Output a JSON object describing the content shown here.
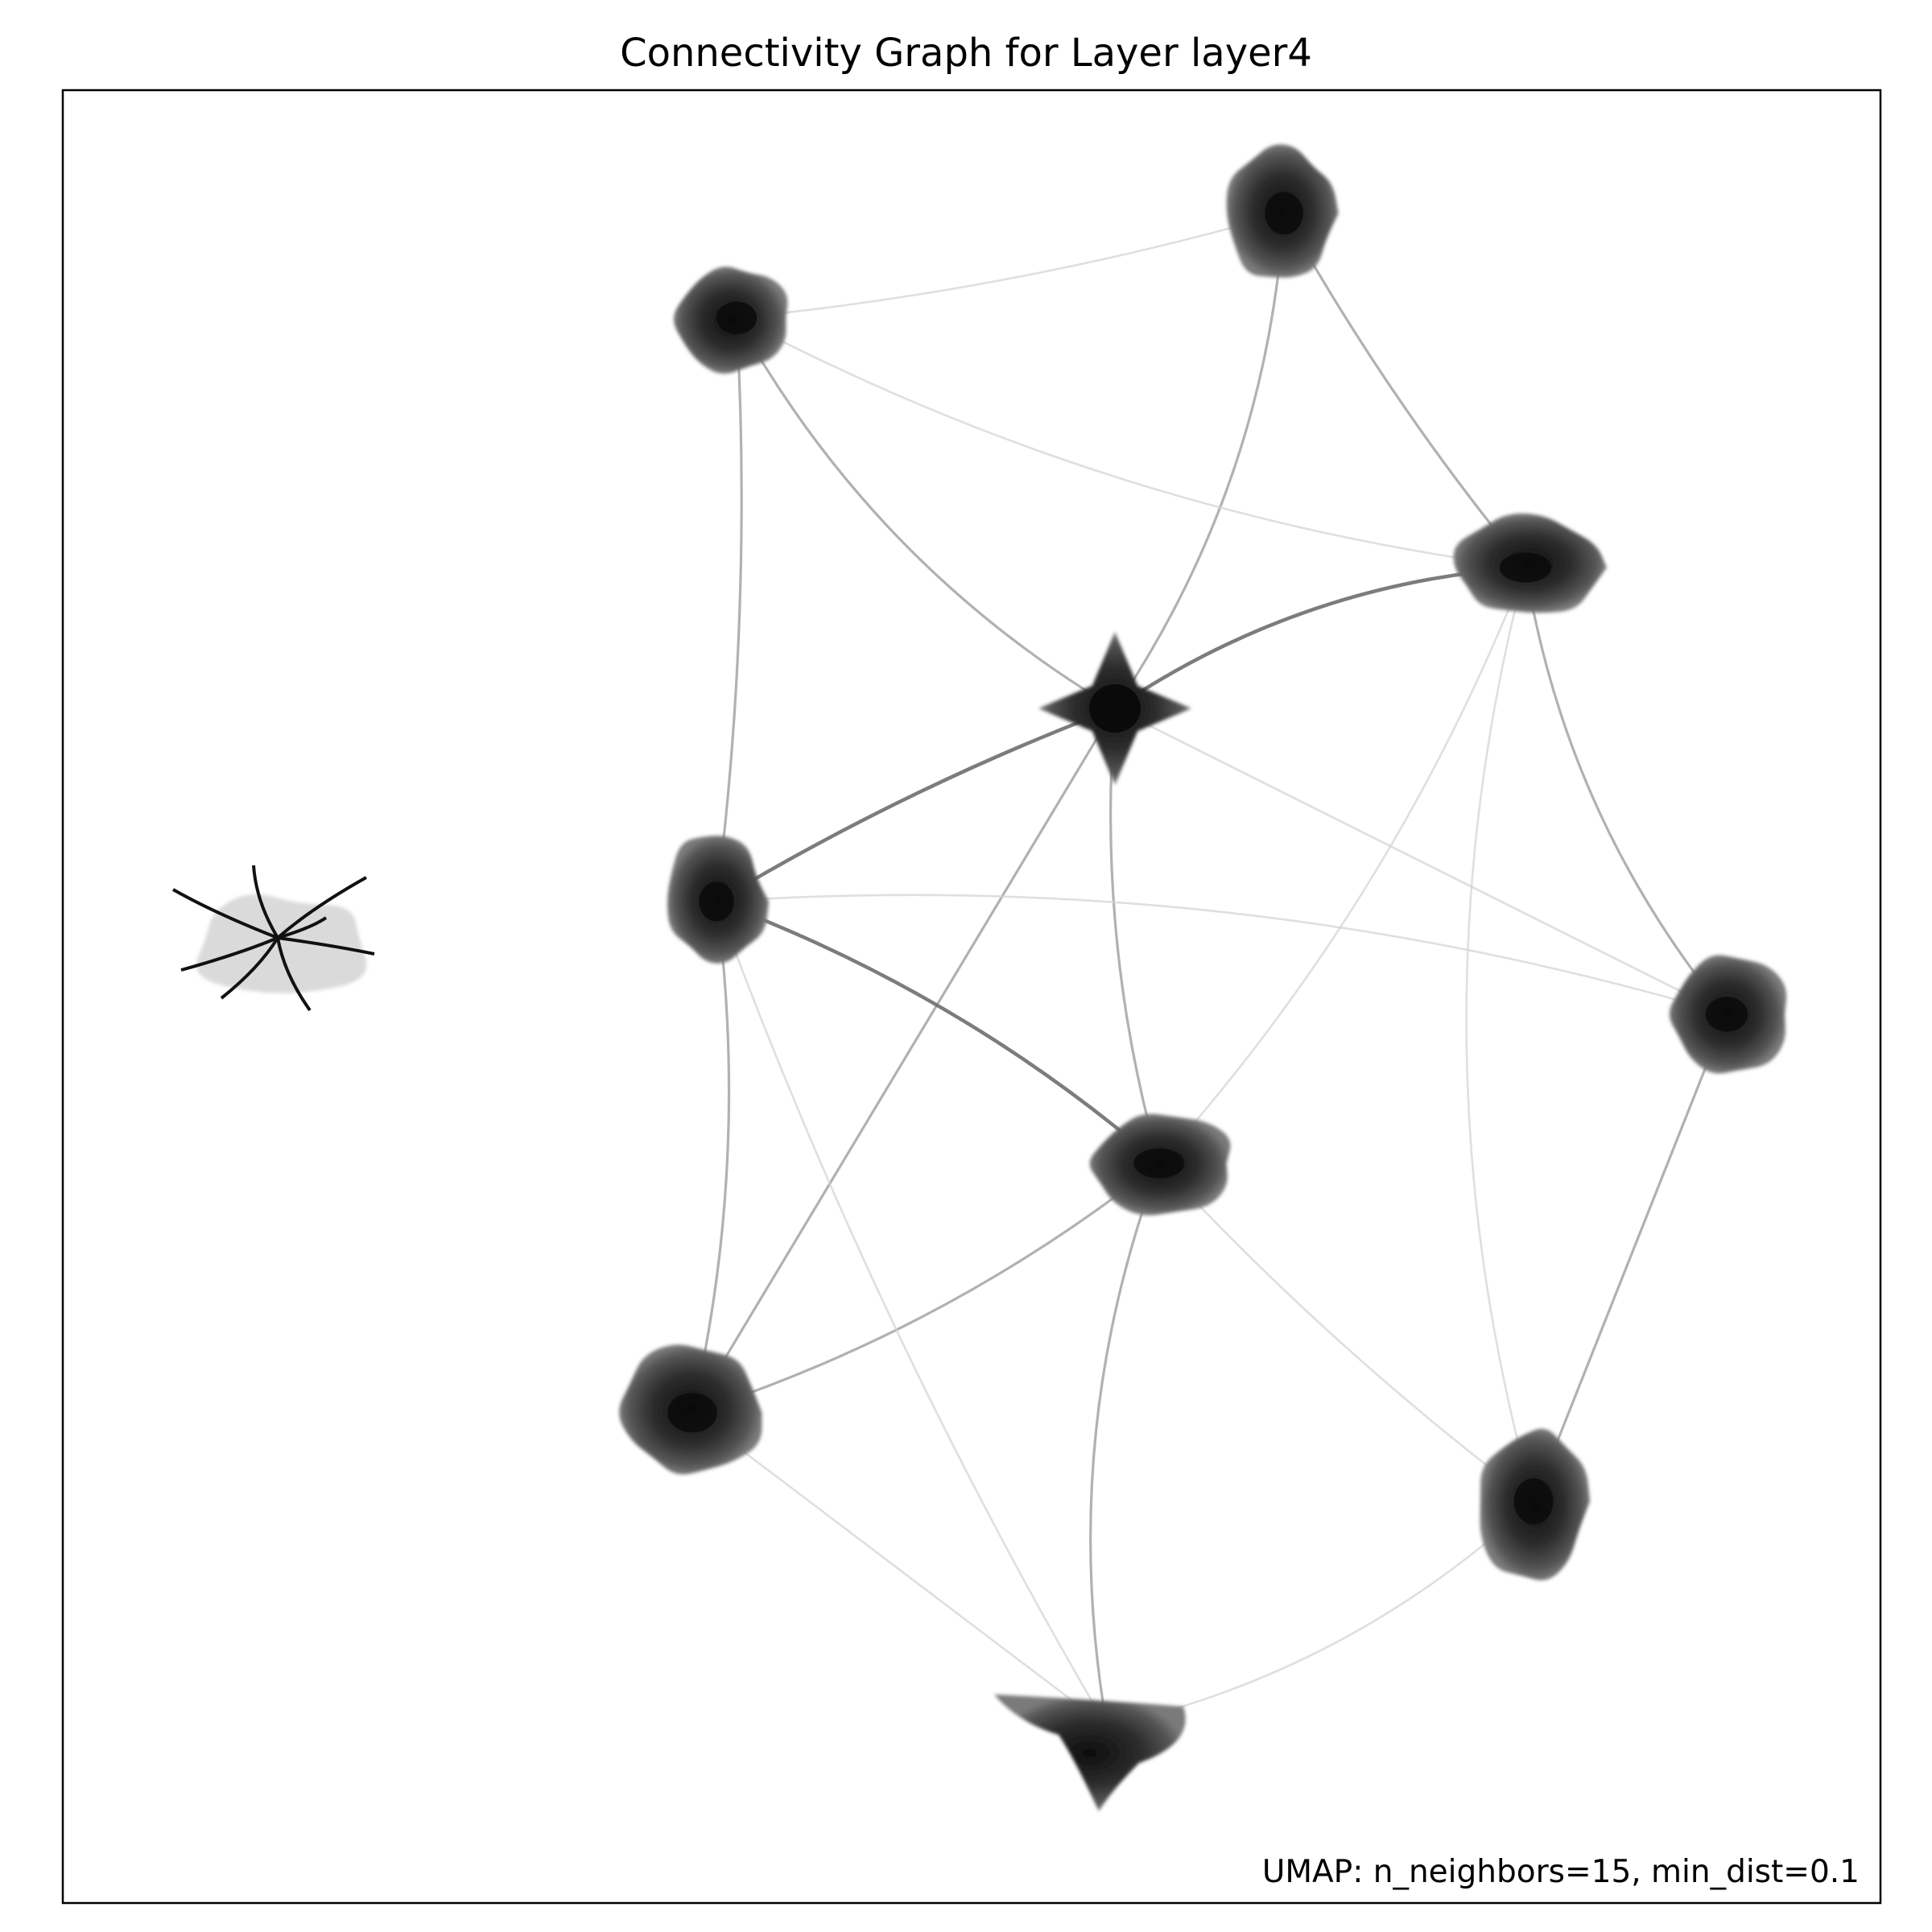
{
  "title": "Connectivity Graph for Layer layer4",
  "annotation": "UMAP: n_neighbors=15, min_dist=0.1",
  "colors": {
    "background": "#ffffff",
    "frame": "#000000",
    "cluster": "#1a1a1a",
    "edge_strong": "#6e6e6e",
    "edge_medium": "#9e9e9e",
    "edge_faint": "#d4d4d4"
  },
  "chart_data": {
    "type": "graph",
    "style": "UMAP connectivity plot, grayscale clusters with bundled edges",
    "clusters": [
      {
        "id": "left-cluster"
      },
      {
        "id": "top-left"
      },
      {
        "id": "top-right"
      },
      {
        "id": "center-star"
      },
      {
        "id": "right-upper"
      },
      {
        "id": "left-middle"
      },
      {
        "id": "right-middle"
      },
      {
        "id": "center-lower"
      },
      {
        "id": "bottom-left"
      },
      {
        "id": "bottom-right"
      },
      {
        "id": "bottom-center"
      }
    ],
    "edges": [
      {
        "from": "top-left",
        "to": "top-right",
        "strength": "faint"
      },
      {
        "from": "top-left",
        "to": "center-star",
        "strength": "medium"
      },
      {
        "from": "top-left",
        "to": "left-middle",
        "strength": "medium"
      },
      {
        "from": "top-right",
        "to": "center-star",
        "strength": "medium"
      },
      {
        "from": "top-right",
        "to": "right-upper",
        "strength": "medium"
      },
      {
        "from": "center-star",
        "to": "right-upper",
        "strength": "strong"
      },
      {
        "from": "center-star",
        "to": "left-middle",
        "strength": "strong"
      },
      {
        "from": "center-star",
        "to": "center-lower",
        "strength": "medium"
      },
      {
        "from": "center-star",
        "to": "bottom-left",
        "strength": "medium"
      },
      {
        "from": "left-middle",
        "to": "center-lower",
        "strength": "strong"
      },
      {
        "from": "left-middle",
        "to": "bottom-left",
        "strength": "medium"
      },
      {
        "from": "right-upper",
        "to": "right-middle",
        "strength": "medium"
      },
      {
        "from": "right-middle",
        "to": "bottom-right",
        "strength": "medium"
      },
      {
        "from": "center-lower",
        "to": "bottom-left",
        "strength": "medium"
      },
      {
        "from": "center-lower",
        "to": "bottom-center",
        "strength": "medium"
      },
      {
        "from": "center-lower",
        "to": "bottom-right",
        "strength": "faint"
      },
      {
        "from": "center-lower",
        "to": "right-upper",
        "strength": "faint"
      },
      {
        "from": "bottom-left",
        "to": "bottom-center",
        "strength": "faint"
      },
      {
        "from": "bottom-right",
        "to": "bottom-center",
        "strength": "faint"
      },
      {
        "from": "top-left",
        "to": "right-upper",
        "strength": "faint"
      },
      {
        "from": "left-middle",
        "to": "bottom-center",
        "strength": "faint"
      },
      {
        "from": "center-star",
        "to": "right-middle",
        "strength": "faint"
      },
      {
        "from": "left-middle",
        "to": "right-middle",
        "strength": "faint"
      },
      {
        "from": "right-upper",
        "to": "bottom-right",
        "strength": "faint"
      }
    ]
  }
}
